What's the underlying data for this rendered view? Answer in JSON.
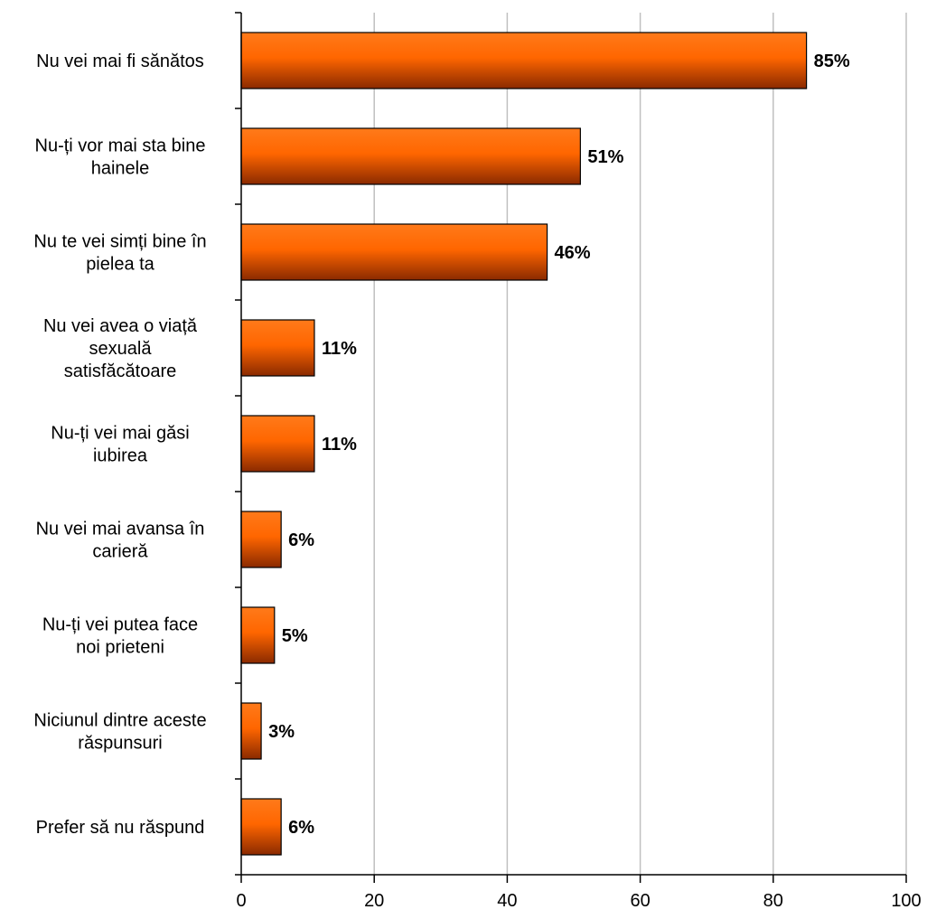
{
  "chart_data": {
    "type": "bar",
    "orientation": "horizontal",
    "categories": [
      "Nu vei mai fi sănătos",
      "Nu-ți vor mai sta bine hainele",
      "Nu te vei simți bine în pielea ta",
      "Nu vei avea o viață sexuală satisfăcătoare",
      "Nu-ți vei mai găsi iubirea",
      "Nu vei mai avansa în carieră",
      "Nu-ți vei putea face noi prieteni",
      "Niciunul dintre aceste răspunsuri",
      "Prefer să nu răspund"
    ],
    "category_lines": [
      [
        "Nu vei mai fi sănătos"
      ],
      [
        "Nu-ți vor mai sta bine",
        "hainele"
      ],
      [
        "Nu te vei simți bine în",
        "pielea ta"
      ],
      [
        "Nu vei avea o viață",
        "sexuală",
        "satisfăcătoare"
      ],
      [
        "Nu-ți vei mai găsi",
        "iubirea"
      ],
      [
        "Nu vei mai avansa în",
        "carieră"
      ],
      [
        "Nu-ți vei putea face",
        "noi prieteni"
      ],
      [
        "Niciunul dintre aceste",
        "răspunsuri"
      ],
      [
        "Prefer să nu răspund"
      ]
    ],
    "values": [
      85,
      51,
      46,
      11,
      11,
      6,
      5,
      3,
      6
    ],
    "data_labels": [
      "85%",
      "51%",
      "46%",
      "11%",
      "11%",
      "6%",
      "5%",
      "3%",
      "6%"
    ],
    "xlim": [
      0,
      100
    ],
    "x_ticks": [
      0,
      20,
      40,
      60,
      80,
      100
    ],
    "title": "",
    "xlabel": "",
    "ylabel": "",
    "grid": "vertical",
    "legend": "none",
    "colors": {
      "bar_light": "#ff7a1a",
      "bar_mid": "#ff6600",
      "bar_dark": "#8a2a00",
      "grid": "#c0c0c0"
    }
  }
}
